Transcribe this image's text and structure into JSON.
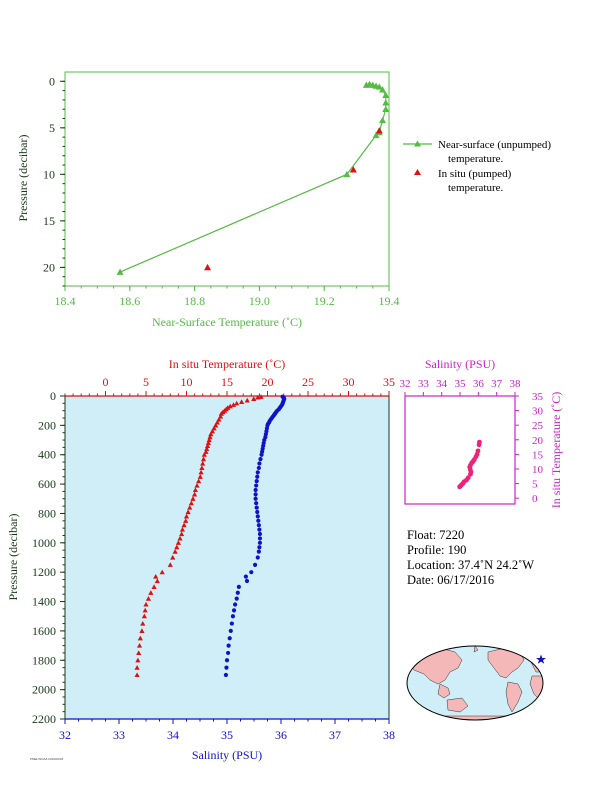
{
  "chart_data": [
    {
      "type": "line",
      "xlabel": "Near-Surface Temperature (˚C)",
      "ylabel": "Pressure (decibar)",
      "xlim": [
        18.4,
        19.4
      ],
      "ylim": [
        22,
        -1
      ],
      "x_ticks": [
        "18.4",
        "18.6",
        "18.8",
        "19.0",
        "19.2",
        "19.4"
      ],
      "y_ticks": [
        "0",
        "5",
        "10",
        "15",
        "20"
      ],
      "series": [
        {
          "name": "Near-surface (unpumped) temperature.",
          "marker": "triangle",
          "color": "#55bb44",
          "points": [
            [
              19.33,
              0.4
            ],
            [
              19.34,
              0.3
            ],
            [
              19.35,
              0.4
            ],
            [
              19.36,
              0.5
            ],
            [
              19.37,
              0.6
            ],
            [
              19.38,
              0.9
            ],
            [
              19.39,
              1.5
            ],
            [
              19.39,
              2.3
            ],
            [
              19.39,
              3.0
            ],
            [
              19.38,
              4.2
            ],
            [
              19.37,
              5.5
            ],
            [
              19.36,
              5.8
            ],
            [
              19.27,
              10.0
            ],
            [
              18.57,
              20.5
            ]
          ]
        },
        {
          "name": "In situ (pumped) temperature.",
          "marker": "triangle",
          "color": "#dd1111",
          "points": [
            [
              19.37,
              5.3
            ],
            [
              19.29,
              9.5
            ],
            [
              18.84,
              20.0
            ]
          ]
        }
      ]
    },
    {
      "type": "line",
      "xlabel": "Salinity (PSU)",
      "x2label": "In situ Temperature (˚C)",
      "ylabel": "Pressure (decibar)",
      "xlim": [
        32,
        38
      ],
      "x2lim": [
        -5,
        35
      ],
      "ylim": [
        2200,
        0
      ],
      "x_ticks": [
        "32",
        "33",
        "34",
        "35",
        "36",
        "37",
        "38"
      ],
      "x2_ticks": [
        "0",
        "5",
        "10",
        "15",
        "20",
        "25",
        "30",
        "35"
      ],
      "y_ticks": [
        "0",
        "200",
        "400",
        "600",
        "800",
        "1000",
        "1200",
        "1400",
        "1600",
        "1800",
        "2000",
        "2200"
      ],
      "series": [
        {
          "name": "In situ Temperature",
          "axis": "x2",
          "marker": "triangle",
          "color": "#dd1111",
          "points": [
            [
              19.2,
              5
            ],
            [
              18.8,
              10
            ],
            [
              18.3,
              20
            ],
            [
              17.5,
              30
            ],
            [
              16.8,
              40
            ],
            [
              16.2,
              50
            ],
            [
              15.8,
              60
            ],
            [
              15.4,
              70
            ],
            [
              15.1,
              80
            ],
            [
              14.9,
              90
            ],
            [
              14.7,
              100
            ],
            [
              14.5,
              110
            ],
            [
              14.3,
              120
            ],
            [
              14.2,
              140
            ],
            [
              14.0,
              160
            ],
            [
              13.8,
              180
            ],
            [
              13.6,
              200
            ],
            [
              13.4,
              220
            ],
            [
              13.2,
              240
            ],
            [
              13.0,
              260
            ],
            [
              12.9,
              280
            ],
            [
              12.8,
              300
            ],
            [
              12.7,
              320
            ],
            [
              12.6,
              340
            ],
            [
              12.5,
              360
            ],
            [
              12.4,
              380
            ],
            [
              12.2,
              400
            ],
            [
              12.1,
              430
            ],
            [
              12.0,
              460
            ],
            [
              11.9,
              490
            ],
            [
              11.8,
              520
            ],
            [
              11.7,
              550
            ],
            [
              11.5,
              580
            ],
            [
              11.3,
              610
            ],
            [
              11.1,
              640
            ],
            [
              11.0,
              670
            ],
            [
              10.8,
              700
            ],
            [
              10.6,
              730
            ],
            [
              10.4,
              760
            ],
            [
              10.2,
              790
            ],
            [
              10.0,
              820
            ],
            [
              9.9,
              850
            ],
            [
              9.7,
              880
            ],
            [
              9.5,
              910
            ],
            [
              9.4,
              940
            ],
            [
              9.2,
              970
            ],
            [
              9.0,
              1000
            ],
            [
              8.8,
              1030
            ],
            [
              8.6,
              1060
            ],
            [
              8.3,
              1100
            ],
            [
              8.0,
              1150
            ],
            [
              7.0,
              1200
            ],
            [
              6.2,
              1230
            ],
            [
              6.4,
              1260
            ],
            [
              6.0,
              1300
            ],
            [
              5.6,
              1340
            ],
            [
              5.3,
              1380
            ],
            [
              5.0,
              1420
            ],
            [
              4.9,
              1460
            ],
            [
              4.8,
              1500
            ],
            [
              4.6,
              1550
            ],
            [
              4.5,
              1600
            ],
            [
              4.3,
              1650
            ],
            [
              4.2,
              1700
            ],
            [
              4.1,
              1750
            ],
            [
              4.0,
              1800
            ],
            [
              3.9,
              1850
            ],
            [
              3.9,
              1900
            ]
          ]
        },
        {
          "name": "Salinity",
          "axis": "x",
          "marker": "circle",
          "color": "#1111cc",
          "points": [
            [
              36.03,
              5
            ],
            [
              36.05,
              10
            ],
            [
              36.06,
              20
            ],
            [
              36.05,
              30
            ],
            [
              36.04,
              40
            ],
            [
              36.03,
              50
            ],
            [
              36.02,
              60
            ],
            [
              36.0,
              70
            ],
            [
              35.98,
              80
            ],
            [
              35.96,
              90
            ],
            [
              35.93,
              100
            ],
            [
              35.91,
              110
            ],
            [
              35.89,
              120
            ],
            [
              35.87,
              130
            ],
            [
              35.85,
              140
            ],
            [
              35.83,
              150
            ],
            [
              35.81,
              160
            ],
            [
              35.79,
              170
            ],
            [
              35.78,
              180
            ],
            [
              35.76,
              190
            ],
            [
              35.75,
              200
            ],
            [
              35.74,
              220
            ],
            [
              35.73,
              240
            ],
            [
              35.72,
              260
            ],
            [
              35.71,
              280
            ],
            [
              35.69,
              300
            ],
            [
              35.68,
              320
            ],
            [
              35.67,
              340
            ],
            [
              35.66,
              360
            ],
            [
              35.65,
              380
            ],
            [
              35.64,
              400
            ],
            [
              35.62,
              430
            ],
            [
              35.6,
              460
            ],
            [
              35.59,
              490
            ],
            [
              35.57,
              520
            ],
            [
              35.56,
              550
            ],
            [
              35.55,
              580
            ],
            [
              35.54,
              610
            ],
            [
              35.53,
              640
            ],
            [
              35.53,
              670
            ],
            [
              35.53,
              700
            ],
            [
              35.54,
              730
            ],
            [
              35.55,
              760
            ],
            [
              35.56,
              790
            ],
            [
              35.57,
              820
            ],
            [
              35.58,
              850
            ],
            [
              35.59,
              880
            ],
            [
              35.6,
              910
            ],
            [
              35.61,
              940
            ],
            [
              35.61,
              970
            ],
            [
              35.61,
              1000
            ],
            [
              35.6,
              1030
            ],
            [
              35.59,
              1060
            ],
            [
              35.57,
              1100
            ],
            [
              35.52,
              1150
            ],
            [
              35.45,
              1200
            ],
            [
              35.35,
              1230
            ],
            [
              35.37,
              1260
            ],
            [
              35.22,
              1300
            ],
            [
              35.2,
              1340
            ],
            [
              35.18,
              1380
            ],
            [
              35.15,
              1420
            ],
            [
              35.13,
              1460
            ],
            [
              35.11,
              1500
            ],
            [
              35.09,
              1550
            ],
            [
              35.07,
              1600
            ],
            [
              35.05,
              1650
            ],
            [
              35.03,
              1700
            ],
            [
              35.02,
              1750
            ],
            [
              35.0,
              1800
            ],
            [
              34.99,
              1850
            ],
            [
              34.98,
              1900
            ]
          ]
        }
      ]
    },
    {
      "type": "scatter",
      "xlabel": "Salinity (PSU)",
      "ylabel": "In situ Temperature (˚C)",
      "xlim": [
        32,
        38
      ],
      "ylim": [
        -2,
        35
      ],
      "x_ticks": [
        "32",
        "33",
        "34",
        "35",
        "36",
        "37",
        "38"
      ],
      "y_ticks": [
        "0",
        "5",
        "10",
        "15",
        "20",
        "25",
        "30",
        "35"
      ],
      "series": [
        {
          "name": "T-S",
          "marker": "circle",
          "color": "#ee2277",
          "points": [
            [
              36.06,
              19.2
            ],
            [
              36.04,
              18.3
            ],
            [
              35.98,
              16.2
            ],
            [
              35.93,
              15.0
            ],
            [
              35.87,
              14.2
            ],
            [
              35.78,
              13.2
            ],
            [
              35.71,
              12.6
            ],
            [
              35.64,
              12.1
            ],
            [
              35.57,
              11.3
            ],
            [
              35.53,
              10.6
            ],
            [
              35.56,
              9.8
            ],
            [
              35.6,
              9.0
            ],
            [
              35.57,
              8.2
            ],
            [
              35.45,
              7.0
            ],
            [
              35.35,
              6.2
            ],
            [
              35.22,
              5.6
            ],
            [
              35.15,
              5.0
            ],
            [
              35.09,
              4.6
            ],
            [
              35.03,
              4.2
            ],
            [
              34.98,
              3.9
            ]
          ]
        }
      ]
    }
  ],
  "info": {
    "float": "Float:  7220",
    "profile": "Profile:  190",
    "location": "Location:  37.4˚N  24.2˚W",
    "date": "Date:  06/17/2016"
  },
  "footer_text": "PMEL/NOAA  2016/06/18",
  "colors": {
    "green": "#55bb44",
    "red": "#dd1111",
    "blue": "#1111cc",
    "magenta": "#cc22cc",
    "ts_marker": "#ee2277",
    "plot_bg": "#cfeef7",
    "axis_dark": "#1a3a1a",
    "ocean": "#cfeef7",
    "land": "#f4b8b8"
  },
  "map": {
    "float_marker": "blue-star"
  }
}
